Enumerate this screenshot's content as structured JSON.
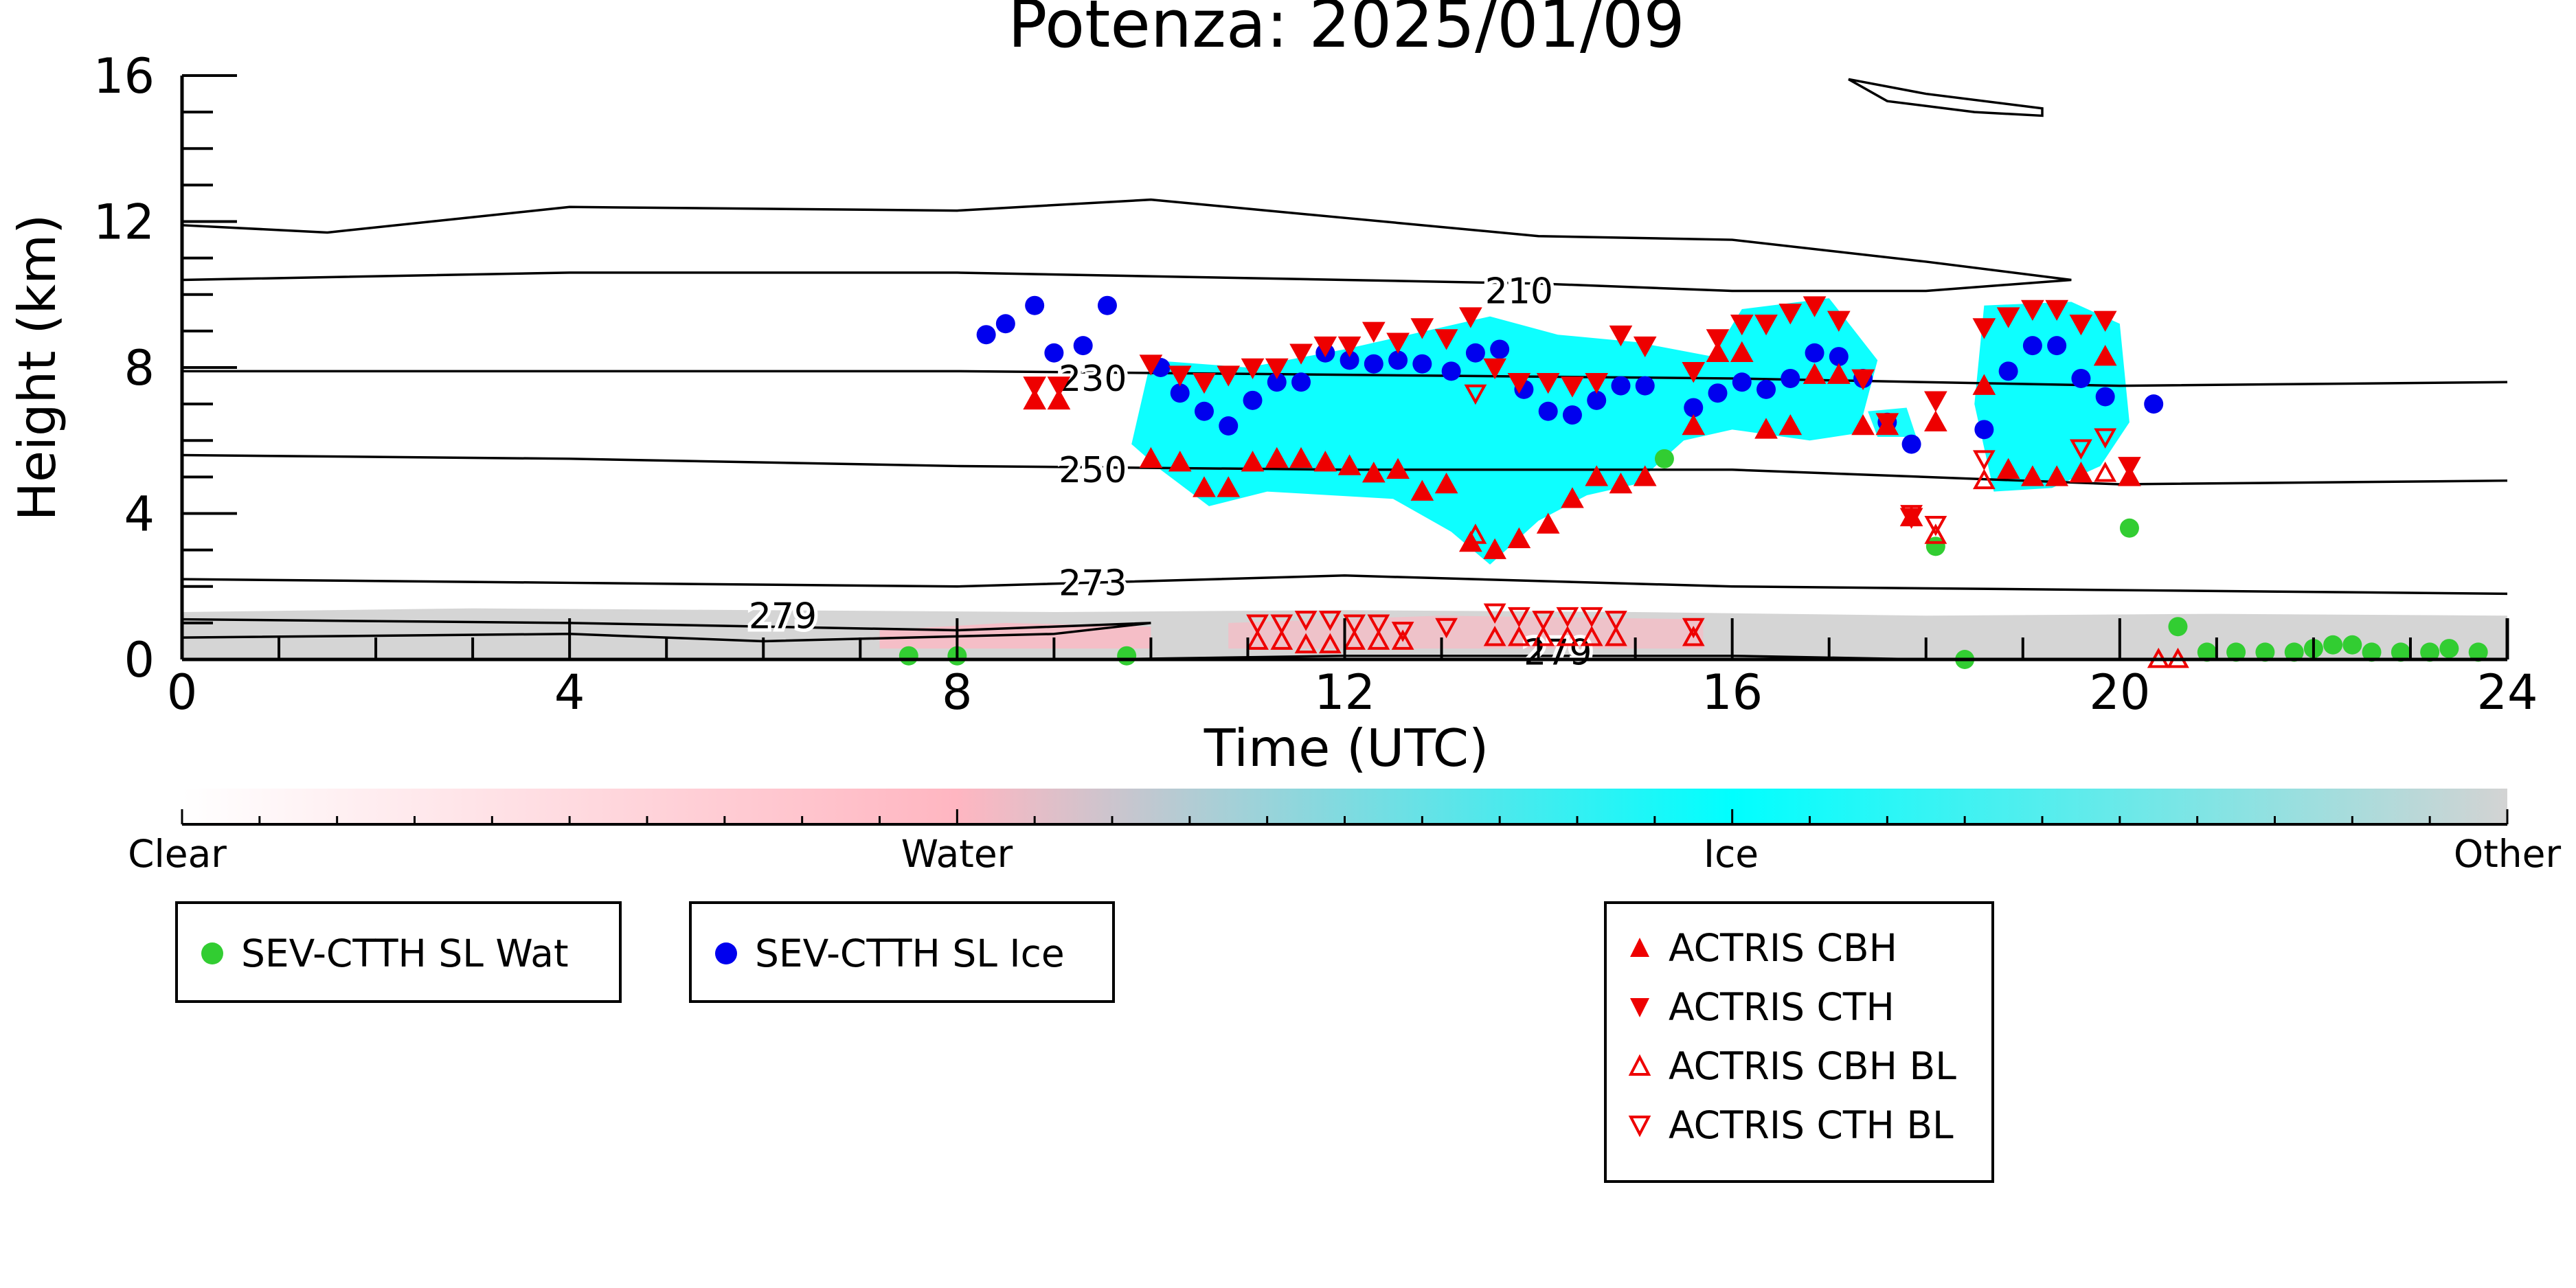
{
  "chart_data": {
    "type": "scatter",
    "title": "Potenza: 2025/01/09",
    "xlabel": "Time (UTC)",
    "ylabel": "Height (km)",
    "xlim": [
      0,
      24
    ],
    "ylim": [
      0,
      16
    ],
    "xticks": [
      "0",
      "4",
      "8",
      "12",
      "16",
      "20",
      "24"
    ],
    "yticks": [
      "0",
      "4",
      "8",
      "12",
      "16"
    ],
    "grid": false,
    "colors": {
      "wat": "#32cd32",
      "ice": "#0000ee",
      "actris": "#ee0000",
      "cloud_ice": "#00ffff",
      "cloud_water": "#ffb6c1",
      "cloud_other": "#d3d3d3"
    },
    "colorbar": {
      "labels": [
        "Clear",
        "Water",
        "Ice",
        "Other"
      ],
      "stops": [
        "#ffffff",
        "#ffb6c1",
        "#00ffff",
        "#d3d3d3"
      ]
    },
    "contours": [
      {
        "label": "210",
        "points": [
          [
            0,
            11.9
          ],
          [
            1.5,
            11.7
          ],
          [
            4,
            12.4
          ],
          [
            8,
            12.3
          ],
          [
            10,
            12.6
          ],
          [
            12,
            12.1
          ],
          [
            14,
            11.6
          ],
          [
            16,
            11.5
          ],
          [
            18,
            10.9
          ],
          [
            19.5,
            10.4
          ],
          [
            18,
            10.1
          ],
          [
            16,
            10.1
          ],
          [
            14,
            10.3
          ],
          [
            12,
            10.4
          ],
          [
            8,
            10.6
          ],
          [
            4,
            10.6
          ],
          [
            0,
            10.4
          ]
        ]
      },
      {
        "label": "230",
        "points": [
          [
            0,
            7.9
          ],
          [
            4,
            7.9
          ],
          [
            8,
            7.9
          ],
          [
            12,
            7.8
          ],
          [
            16,
            7.7
          ],
          [
            20,
            7.5
          ],
          [
            24,
            7.6
          ]
        ]
      },
      {
        "label": "250",
        "points": [
          [
            0,
            5.6
          ],
          [
            4,
            5.5
          ],
          [
            8,
            5.3
          ],
          [
            12,
            5.2
          ],
          [
            16,
            5.2
          ],
          [
            20,
            4.8
          ],
          [
            24,
            4.9
          ]
        ]
      },
      {
        "label": "273",
        "points": [
          [
            0,
            2.2
          ],
          [
            4,
            2.1
          ],
          [
            8,
            2.0
          ],
          [
            12,
            2.3
          ],
          [
            16,
            2.0
          ],
          [
            20,
            1.9
          ],
          [
            24,
            1.8
          ]
        ]
      },
      {
        "label": "279",
        "points": [
          [
            0,
            1.1
          ],
          [
            4,
            1.0
          ],
          [
            8,
            0.8
          ],
          [
            10,
            1.0
          ],
          [
            9,
            0.7
          ],
          [
            6,
            0.5
          ],
          [
            4,
            0.7
          ],
          [
            0,
            0.6
          ]
        ]
      },
      {
        "label": "279",
        "points": [
          [
            9.5,
            0.0
          ],
          [
            12,
            0.1
          ],
          [
            14,
            0.1
          ],
          [
            16,
            0.1
          ],
          [
            18,
            0.0
          ],
          [
            20,
            0.0
          ]
        ]
      },
      {
        "label": "",
        "points": [
          [
            17.2,
            15.9
          ],
          [
            18,
            15.5
          ],
          [
            19.2,
            15.1
          ],
          [
            19.2,
            14.9
          ],
          [
            18.5,
            15.0
          ],
          [
            17.6,
            15.3
          ],
          [
            17.2,
            15.9
          ]
        ]
      }
    ],
    "series": [
      {
        "name": "SEV-CTTH SL Wat",
        "marker": "circle",
        "points": [
          [
            7.5,
            0.1
          ],
          [
            8.0,
            0.1
          ],
          [
            9.75,
            0.1
          ],
          [
            15.3,
            5.5
          ],
          [
            18.1,
            3.1
          ],
          [
            18.4,
            0.0
          ],
          [
            20.1,
            3.6
          ],
          [
            20.6,
            0.9
          ],
          [
            20.9,
            0.2
          ],
          [
            21.2,
            0.2
          ],
          [
            21.5,
            0.2
          ],
          [
            21.8,
            0.2
          ],
          [
            22.0,
            0.3
          ],
          [
            22.2,
            0.4
          ],
          [
            22.4,
            0.4
          ],
          [
            22.6,
            0.2
          ],
          [
            22.9,
            0.2
          ],
          [
            23.2,
            0.2
          ],
          [
            23.4,
            0.3
          ],
          [
            23.7,
            0.2
          ]
        ]
      },
      {
        "name": "SEV-CTTH SL Ice",
        "marker": "circle",
        "points": [
          [
            8.3,
            8.9
          ],
          [
            8.5,
            9.2
          ],
          [
            8.8,
            9.7
          ],
          [
            9.0,
            8.4
          ],
          [
            9.3,
            8.6
          ],
          [
            9.55,
            9.7
          ],
          [
            10.1,
            8.0
          ],
          [
            10.3,
            7.3
          ],
          [
            10.55,
            6.8
          ],
          [
            10.8,
            6.4
          ],
          [
            11.05,
            7.1
          ],
          [
            11.3,
            7.6
          ],
          [
            11.55,
            7.6
          ],
          [
            11.8,
            8.4
          ],
          [
            12.05,
            8.2
          ],
          [
            12.3,
            8.1
          ],
          [
            12.55,
            8.2
          ],
          [
            12.8,
            8.1
          ],
          [
            13.1,
            7.9
          ],
          [
            13.35,
            8.4
          ],
          [
            13.6,
            8.5
          ],
          [
            13.85,
            7.4
          ],
          [
            14.1,
            6.8
          ],
          [
            14.35,
            6.7
          ],
          [
            14.6,
            7.1
          ],
          [
            14.85,
            7.5
          ],
          [
            15.1,
            7.5
          ],
          [
            15.6,
            6.9
          ],
          [
            15.85,
            7.3
          ],
          [
            16.1,
            7.6
          ],
          [
            16.35,
            7.4
          ],
          [
            16.6,
            7.7
          ],
          [
            16.85,
            8.4
          ],
          [
            17.1,
            8.3
          ],
          [
            17.35,
            7.7
          ],
          [
            17.6,
            6.5
          ],
          [
            17.85,
            5.9
          ],
          [
            18.6,
            6.3
          ],
          [
            18.85,
            7.9
          ],
          [
            19.1,
            8.6
          ],
          [
            19.35,
            8.6
          ],
          [
            19.6,
            7.7
          ],
          [
            19.85,
            7.2
          ],
          [
            20.35,
            7.0
          ]
        ]
      },
      {
        "name": "ACTRIS CBH",
        "marker": "triangle-up",
        "points": [
          [
            8.8,
            7.1
          ],
          [
            9.05,
            7.1
          ],
          [
            10.0,
            5.5
          ],
          [
            10.3,
            5.4
          ],
          [
            10.55,
            4.7
          ],
          [
            10.8,
            4.7
          ],
          [
            11.05,
            5.4
          ],
          [
            11.3,
            5.5
          ],
          [
            11.55,
            5.5
          ],
          [
            11.8,
            5.4
          ],
          [
            12.05,
            5.3
          ],
          [
            12.3,
            5.1
          ],
          [
            12.55,
            5.2
          ],
          [
            12.8,
            4.6
          ],
          [
            13.05,
            4.8
          ],
          [
            13.3,
            3.2
          ],
          [
            13.55,
            3.0
          ],
          [
            13.8,
            3.3
          ],
          [
            14.1,
            3.7
          ],
          [
            14.35,
            4.4
          ],
          [
            14.6,
            5.0
          ],
          [
            14.85,
            4.8
          ],
          [
            15.1,
            5.0
          ],
          [
            15.6,
            6.4
          ],
          [
            15.85,
            8.4
          ],
          [
            16.1,
            8.4
          ],
          [
            16.35,
            6.3
          ],
          [
            16.6,
            6.4
          ],
          [
            16.85,
            7.8
          ],
          [
            17.1,
            7.8
          ],
          [
            17.35,
            6.4
          ],
          [
            17.6,
            6.4
          ],
          [
            17.85,
            3.9
          ],
          [
            18.1,
            6.5
          ],
          [
            18.6,
            7.5
          ],
          [
            18.85,
            5.2
          ],
          [
            19.1,
            5.0
          ],
          [
            19.35,
            5.0
          ],
          [
            19.6,
            5.1
          ],
          [
            19.85,
            8.3
          ],
          [
            20.1,
            5.0
          ]
        ]
      },
      {
        "name": "ACTRIS CTH",
        "marker": "triangle-down",
        "points": [
          [
            8.8,
            7.5
          ],
          [
            9.05,
            7.5
          ],
          [
            10.0,
            8.1
          ],
          [
            10.3,
            7.8
          ],
          [
            10.55,
            7.6
          ],
          [
            10.8,
            7.8
          ],
          [
            11.05,
            8.0
          ],
          [
            11.3,
            8.0
          ],
          [
            11.55,
            8.4
          ],
          [
            11.8,
            8.6
          ],
          [
            12.05,
            8.6
          ],
          [
            12.3,
            9.0
          ],
          [
            12.55,
            8.7
          ],
          [
            12.8,
            9.1
          ],
          [
            13.05,
            8.8
          ],
          [
            13.3,
            9.4
          ],
          [
            13.55,
            8.0
          ],
          [
            13.8,
            7.6
          ],
          [
            14.1,
            7.6
          ],
          [
            14.35,
            7.5
          ],
          [
            14.6,
            7.6
          ],
          [
            14.85,
            8.9
          ],
          [
            15.1,
            8.6
          ],
          [
            15.6,
            7.9
          ],
          [
            15.85,
            8.8
          ],
          [
            16.1,
            9.2
          ],
          [
            16.35,
            9.2
          ],
          [
            16.6,
            9.5
          ],
          [
            16.85,
            9.7
          ],
          [
            17.1,
            9.3
          ],
          [
            17.35,
            7.7
          ],
          [
            17.6,
            6.5
          ],
          [
            17.85,
            3.9
          ],
          [
            18.1,
            7.1
          ],
          [
            18.6,
            9.1
          ],
          [
            18.85,
            9.4
          ],
          [
            19.1,
            9.6
          ],
          [
            19.35,
            9.6
          ],
          [
            19.6,
            9.2
          ],
          [
            19.85,
            9.3
          ],
          [
            20.1,
            5.3
          ]
        ]
      },
      {
        "name": "ACTRIS CBH BL",
        "marker": "triangle-up-open",
        "points": [
          [
            11.1,
            0.5
          ],
          [
            11.35,
            0.5
          ],
          [
            11.6,
            0.4
          ],
          [
            11.85,
            0.4
          ],
          [
            12.1,
            0.5
          ],
          [
            12.35,
            0.5
          ],
          [
            12.6,
            0.5
          ],
          [
            13.35,
            3.4
          ],
          [
            13.55,
            0.6
          ],
          [
            13.8,
            0.6
          ],
          [
            14.05,
            0.6
          ],
          [
            14.3,
            0.6
          ],
          [
            14.55,
            0.6
          ],
          [
            14.8,
            0.6
          ],
          [
            15.6,
            0.6
          ],
          [
            18.1,
            3.4
          ],
          [
            18.6,
            4.9
          ],
          [
            19.85,
            5.1
          ],
          [
            20.4,
            0.0
          ],
          [
            20.6,
            0.0
          ]
        ]
      },
      {
        "name": "ACTRIS CTH BL",
        "marker": "triangle-down-open",
        "points": [
          [
            11.1,
            1.0
          ],
          [
            11.35,
            1.0
          ],
          [
            11.6,
            1.1
          ],
          [
            11.85,
            1.1
          ],
          [
            12.1,
            1.0
          ],
          [
            12.35,
            1.0
          ],
          [
            12.6,
            0.8
          ],
          [
            13.05,
            0.9
          ],
          [
            13.35,
            7.3
          ],
          [
            13.55,
            1.3
          ],
          [
            13.8,
            1.2
          ],
          [
            14.05,
            1.1
          ],
          [
            14.3,
            1.2
          ],
          [
            14.55,
            1.2
          ],
          [
            14.8,
            1.1
          ],
          [
            15.6,
            0.9
          ],
          [
            17.85,
            4.0
          ],
          [
            18.1,
            3.7
          ],
          [
            18.6,
            5.5
          ],
          [
            19.6,
            5.8
          ],
          [
            19.85,
            6.1
          ]
        ]
      }
    ],
    "legends": [
      {
        "entries": [
          "SEV-CTTH SL Wat"
        ]
      },
      {
        "entries": [
          "SEV-CTTH SL Ice"
        ]
      },
      {
        "entries": [
          "ACTRIS CBH",
          "ACTRIS CTH",
          "ACTRIS CBH BL",
          "ACTRIS CTH BL"
        ]
      }
    ]
  }
}
